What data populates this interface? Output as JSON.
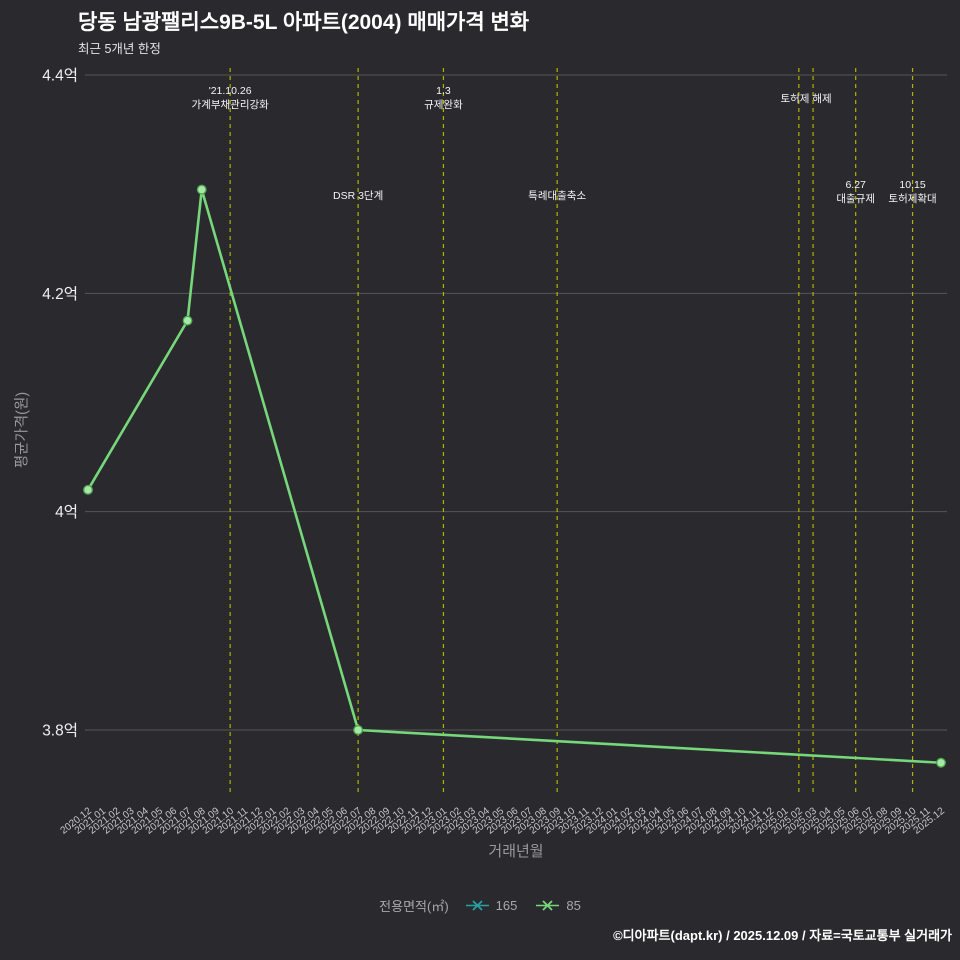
{
  "page": {
    "title": "당동 남광팰리스9B-5L 아파트(2004) 매매가격 변화",
    "subtitle": "최근 5개년 한정",
    "footer": "©디아파트(dapt.kr) / 2025.12.09 / 자료=국토교통부 실거래가"
  },
  "colors": {
    "background": "#2a2a2e",
    "grid": "#55555a",
    "event_line": "#b3b300",
    "tick_text": "#c9c9c9",
    "y_tick_text": "#f0f0f0",
    "axis_title": "#999999",
    "annotation": "#f5f5f5",
    "series_85": "#76d77b",
    "series_165": "#26a0a0",
    "marker_fill": "#a6e8a6",
    "marker_edge": "#4da551"
  },
  "chart_data": {
    "type": "line",
    "title": "당동 남광팰리스9B-5L 아파트(2004) 매매가격 변화",
    "subtitle": "최근 5개년 한정",
    "xlabel": "거래년월",
    "ylabel": "평균가격(원)",
    "grid": true,
    "legend_position": "bottom",
    "ylim": [
      3.74,
      4.41
    ],
    "y_unit": "억",
    "y_ticks": [
      {
        "label": "4.4억",
        "value": 4.4
      },
      {
        "label": "4.2억",
        "value": 4.2
      },
      {
        "label": "4억",
        "value": 4.0
      },
      {
        "label": "3.8억",
        "value": 3.8
      }
    ],
    "x_labels": [
      "2020.12",
      "2021.01",
      "2021.02",
      "2021.03",
      "2021.04",
      "2021.05",
      "2021.06",
      "2021.07",
      "2021.08",
      "2021.09",
      "2021.10",
      "2021.11",
      "2021.12",
      "2022.01",
      "2022.02",
      "2022.03",
      "2022.04",
      "2022.05",
      "2022.06",
      "2022.07",
      "2022.08",
      "2022.09",
      "2022.10",
      "2022.11",
      "2022.12",
      "2023.01",
      "2023.02",
      "2023.03",
      "2023.04",
      "2023.05",
      "2023.06",
      "2023.07",
      "2023.08",
      "2023.09",
      "2023.10",
      "2023.11",
      "2023.12",
      "2024.01",
      "2024.02",
      "2024.03",
      "2024.04",
      "2024.05",
      "2024.06",
      "2024.07",
      "2024.08",
      "2024.09",
      "2024.10",
      "2024.11",
      "2024.12",
      "2025.01",
      "2025.02",
      "2025.03",
      "2025.04",
      "2025.05",
      "2025.06",
      "2025.07",
      "2025.08",
      "2025.09",
      "2025.10",
      "2025.11",
      "2025.12"
    ],
    "series": [
      {
        "name": "165",
        "color": "#26a0a0",
        "points": []
      },
      {
        "name": "85",
        "color": "#76d77b",
        "points": [
          {
            "x": "2020.12",
            "y": 4.02
          },
          {
            "x": "2021.07",
            "y": 4.175
          },
          {
            "x": "2021.08",
            "y": 4.295
          },
          {
            "x": "2022.07",
            "y": 3.8
          },
          {
            "x": "2025.12",
            "y": 3.77
          }
        ]
      }
    ],
    "events": [
      {
        "x": "2021.10",
        "lines": [
          "'21.10.26",
          "가계부채관리강화"
        ],
        "label_y": 84
      },
      {
        "x": "2022.07",
        "lines": [
          "DSR 3단계"
        ],
        "label_y": 189
      },
      {
        "x": "2023.01",
        "lines": [
          "1.3",
          "규제완화"
        ],
        "label_y": 84
      },
      {
        "x": "2023.09",
        "lines": [
          "특례대출축소"
        ],
        "label_y": 189
      },
      {
        "x": "2025.02",
        "lines": [],
        "label_y": 0
      },
      {
        "x": "2025.03",
        "lines": [
          "토허제 해제"
        ],
        "label_y": 92,
        "label_dx": -7
      },
      {
        "x": "2025.06",
        "lines": [
          "6.27",
          "대출규제"
        ],
        "label_y": 178
      },
      {
        "x": "2025.10",
        "lines": [
          "10.15",
          "토허제확대"
        ],
        "label_y": 178
      }
    ],
    "legend": {
      "title": "전용면적(㎡)",
      "entries": [
        {
          "label": "165",
          "color": "#26a0a0",
          "marker": "x-marker-icon"
        },
        {
          "label": "85",
          "color": "#76d77b",
          "marker": "x-marker-icon"
        }
      ]
    }
  }
}
